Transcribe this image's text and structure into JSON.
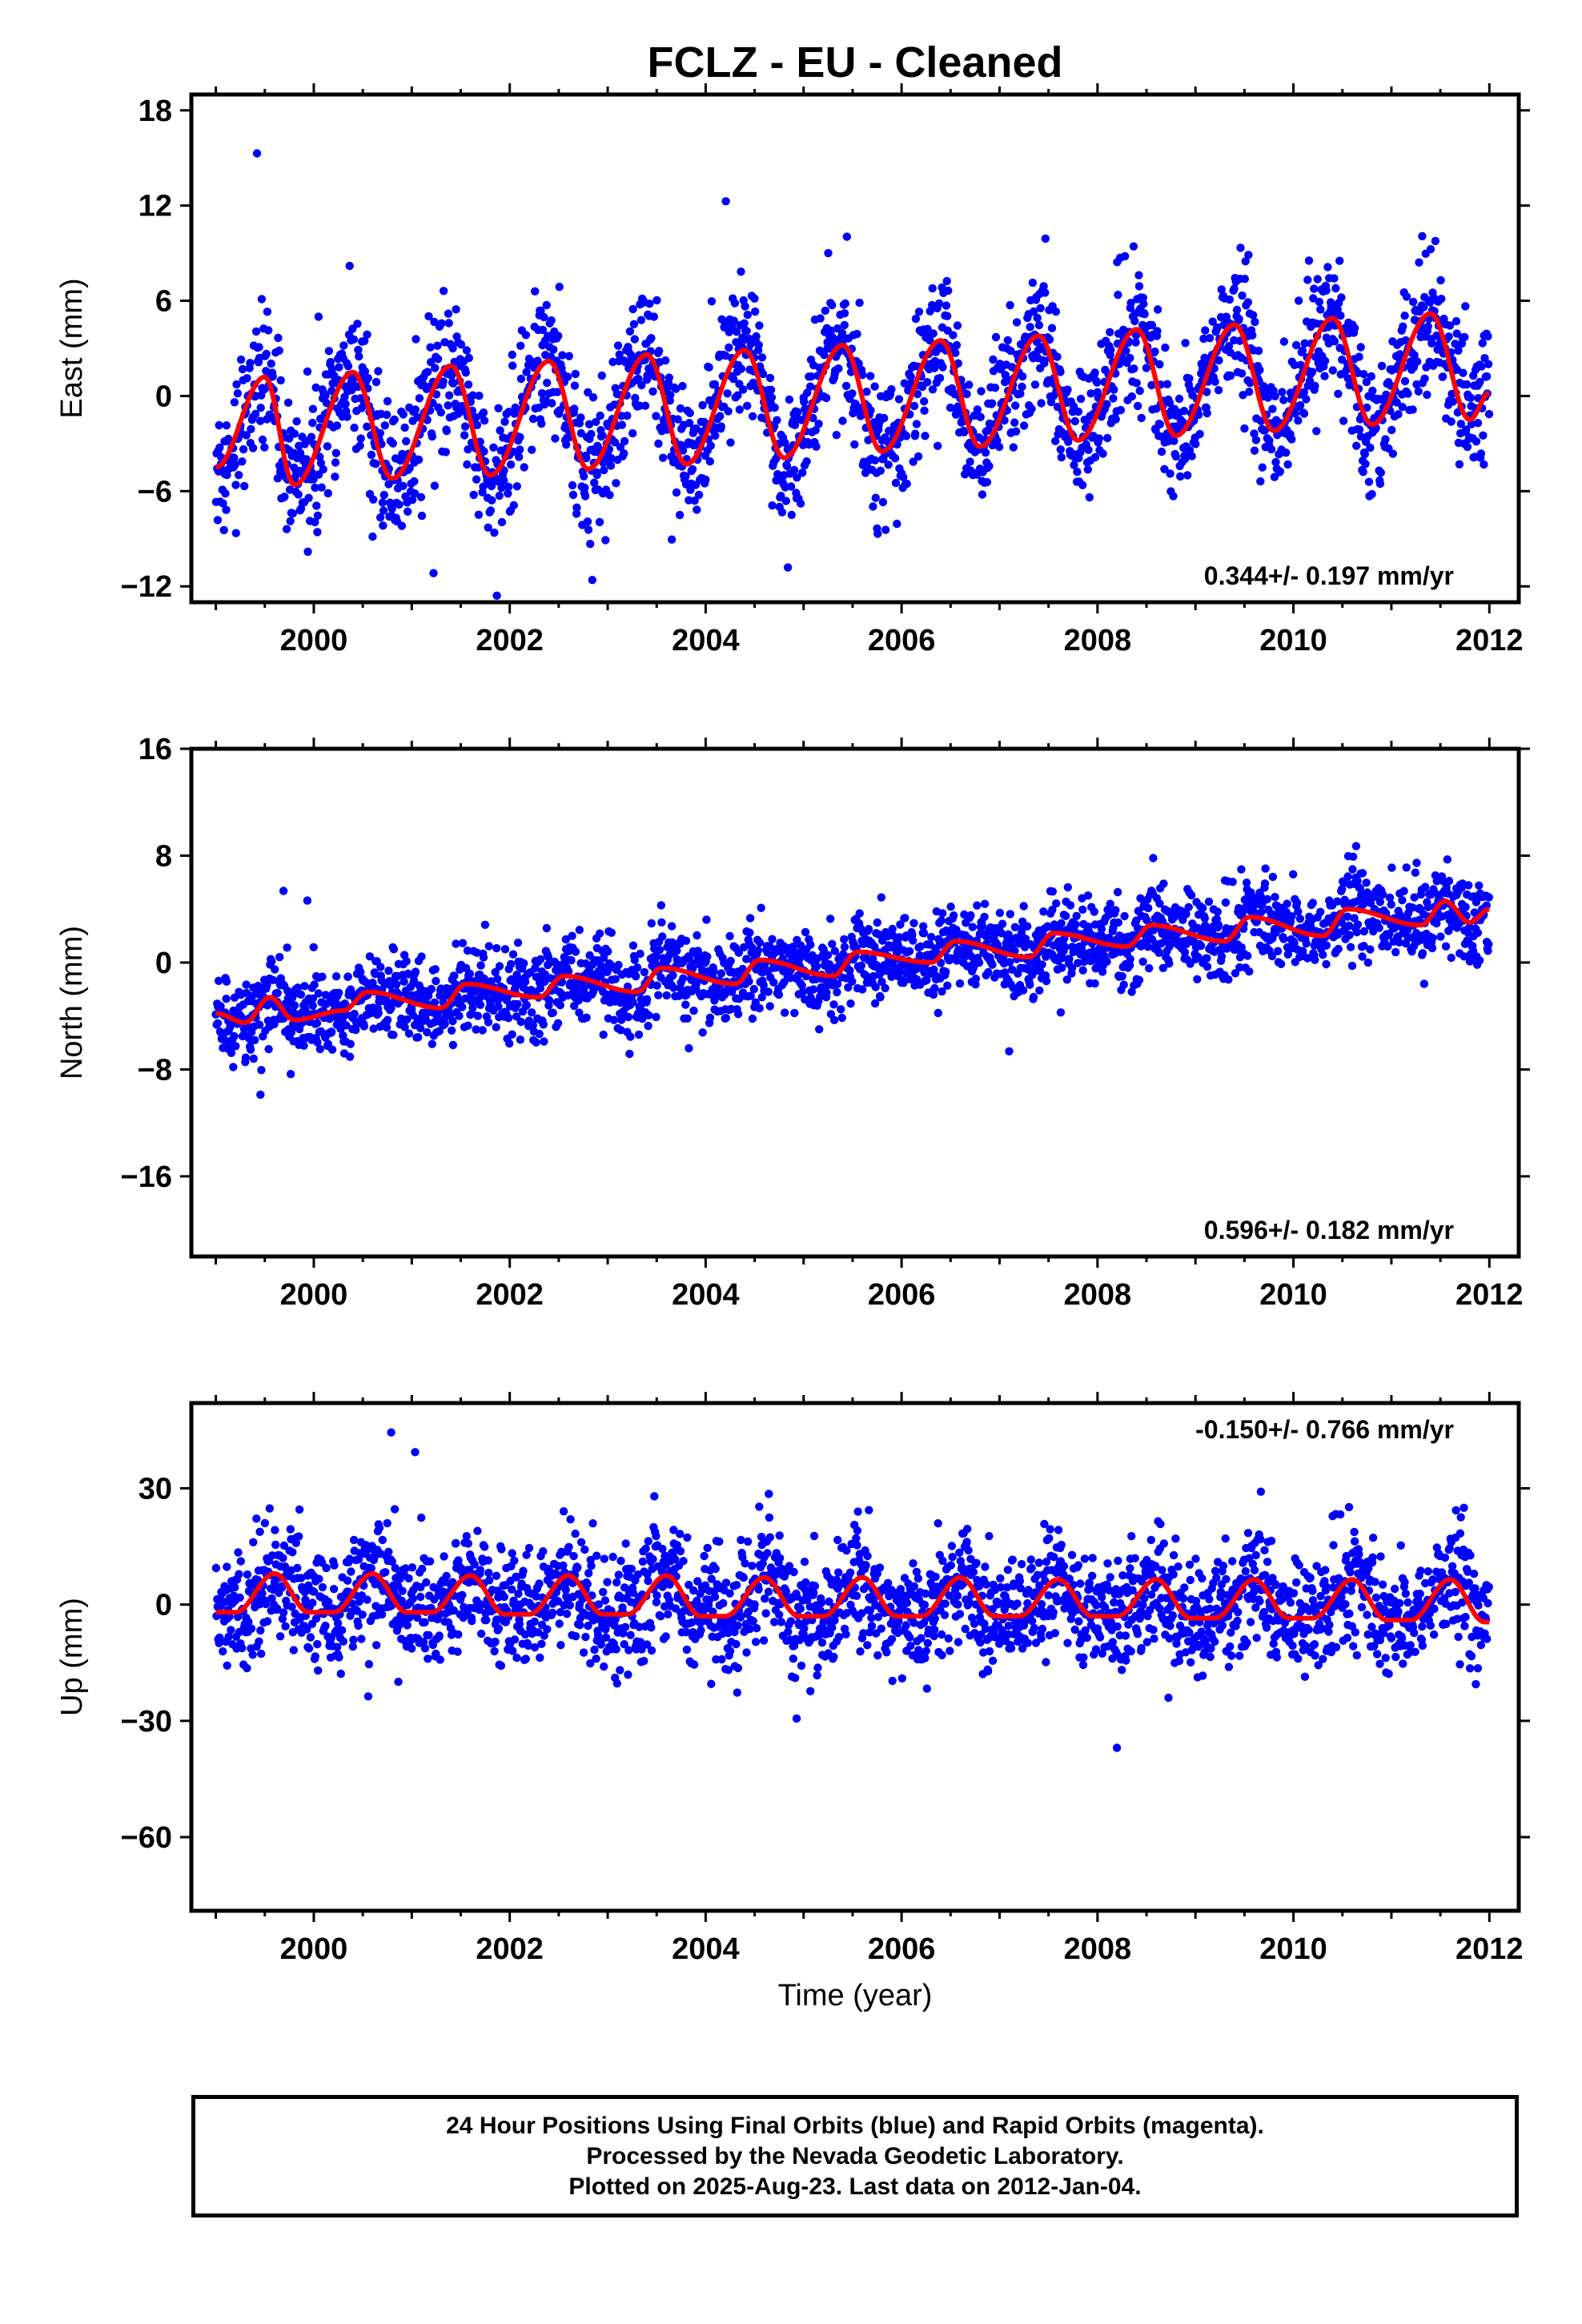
{
  "title": "FCLZ  - EU - Cleaned",
  "x_axis_label": "Time (year)",
  "colors": {
    "data_points": "#0000ff",
    "model_curve": "#ff0000",
    "frame": "#000000"
  },
  "footer": {
    "line1": "24 Hour Positions Using Final Orbits (blue) and Rapid Orbits (magenta).",
    "line2": "Processed by the Nevada Geodetic Laboratory.",
    "line3": "Plotted on 2025-Aug-23. Last data on 2012-Jan-04."
  },
  "chart_data": [
    {
      "type": "scatter",
      "component": "east",
      "ylabel": "East (mm)",
      "xlim": [
        1998.75,
        2012.3
      ],
      "ylim": [
        -13,
        19
      ],
      "xticks": [
        2000,
        2002,
        2004,
        2006,
        2008,
        2010,
        2012
      ],
      "yticks": [
        -12,
        -6,
        0,
        6,
        12,
        18
      ],
      "rate_annotation": "0.344+/- 0.197 mm/yr",
      "annotation_position": "bottom-right",
      "series": [
        {
          "kind": "daily-positions",
          "x_start": 1999.0,
          "x_end": 2012.0,
          "description_values": {
            "amplitude_mm": 4.2,
            "scatter_mm": 2.1
          }
        },
        {
          "kind": "model-fit",
          "x": [
            1999.0,
            1999.5,
            1999.8,
            2000.4,
            2000.8,
            2001.4,
            2001.8,
            2002.4,
            2002.8,
            2003.4,
            2003.8,
            2004.4,
            2004.8,
            2005.4,
            2005.8,
            2006.4,
            2006.8,
            2007.4,
            2007.8,
            2008.4,
            2008.8,
            2009.4,
            2009.8,
            2010.4,
            2010.8,
            2011.4,
            2011.8,
            2012.0
          ],
          "values": [
            -4.5,
            1.2,
            -5.6,
            1.5,
            -5.2,
            1.9,
            -5.0,
            2.2,
            -4.6,
            2.6,
            -4.3,
            2.9,
            -3.9,
            3.2,
            -3.5,
            3.5,
            -3.2,
            3.8,
            -2.8,
            4.2,
            -2.5,
            4.5,
            -2.2,
            4.9,
            -1.8,
            5.2,
            -1.5,
            0.2
          ]
        }
      ]
    },
    {
      "type": "scatter",
      "component": "north",
      "ylabel": "North (mm)",
      "xlim": [
        1998.75,
        2012.3
      ],
      "ylim": [
        -22,
        16
      ],
      "xticks": [
        2000,
        2002,
        2004,
        2006,
        2008,
        2010,
        2012
      ],
      "yticks": [
        -16,
        -8,
        0,
        8,
        16
      ],
      "rate_annotation": "0.596+/- 0.182 mm/yr",
      "annotation_position": "bottom-right",
      "series": [
        {
          "kind": "daily-positions",
          "x_start": 1999.0,
          "x_end": 2012.0,
          "description_values": {
            "trend_start_mm": -4.0,
            "trend_end_mm": 3.8,
            "scatter_mm": 1.6
          }
        },
        {
          "kind": "model-fit",
          "x": [
            1999.0,
            1999.3,
            1999.55,
            1999.8,
            2000.3,
            2000.55,
            2001.3,
            2001.55,
            2002.3,
            2002.55,
            2003.3,
            2003.55,
            2004.3,
            2004.55,
            2005.3,
            2005.55,
            2006.3,
            2006.55,
            2007.3,
            2007.55,
            2008.3,
            2008.55,
            2009.3,
            2009.55,
            2010.3,
            2010.55,
            2011.3,
            2011.55,
            2011.8,
            2012.0
          ],
          "values": [
            -3.8,
            -4.5,
            -2.6,
            -4.3,
            -3.6,
            -2.2,
            -3.4,
            -1.6,
            -2.6,
            -1.0,
            -2.2,
            -0.4,
            -1.6,
            0.2,
            -1.0,
            0.8,
            0.0,
            1.6,
            0.4,
            2.2,
            1.2,
            2.8,
            1.6,
            3.4,
            2.0,
            4.0,
            2.8,
            4.6,
            3.0,
            4.0
          ]
        }
      ]
    },
    {
      "type": "scatter",
      "component": "up",
      "ylabel": "Up (mm)",
      "xlim": [
        1998.75,
        2012.3
      ],
      "ylim": [
        -79,
        52
      ],
      "xticks": [
        2000,
        2002,
        2004,
        2006,
        2008,
        2010,
        2012
      ],
      "yticks": [
        -60,
        -30,
        0,
        30
      ],
      "rate_annotation": "-0.150+/- 0.766 mm/yr",
      "annotation_position": "top-right",
      "series": [
        {
          "kind": "daily-positions",
          "x_start": 1999.0,
          "x_end": 2012.0,
          "description_values": {
            "scatter_mm": 7.5
          }
        },
        {
          "kind": "model-fit",
          "x": [
            1999.0,
            1999.2,
            1999.6,
            1999.95,
            2000.2,
            2000.6,
            2000.95,
            2001.2,
            2001.6,
            2001.95,
            2002.2,
            2002.6,
            2002.95,
            2003.2,
            2003.6,
            2003.95,
            2004.2,
            2004.6,
            2004.95,
            2005.2,
            2005.6,
            2005.95,
            2006.2,
            2006.6,
            2006.95,
            2007.2,
            2007.6,
            2007.95,
            2008.2,
            2008.6,
            2008.95,
            2009.2,
            2009.6,
            2009.95,
            2010.2,
            2010.6,
            2010.95,
            2011.2,
            2011.6,
            2011.95,
            2012.0
          ],
          "values": [
            -2,
            -2,
            8,
            -2,
            -2,
            8,
            -2,
            -2,
            7.5,
            -2.5,
            -2.5,
            7.5,
            -2.5,
            -2.5,
            7.5,
            -3,
            -3,
            7,
            -3,
            -3,
            7,
            -3,
            -3,
            7,
            -3,
            -3,
            6.5,
            -3,
            -3,
            6.5,
            -3.5,
            -3.5,
            6.5,
            -3.5,
            -3.5,
            6.5,
            -4,
            -4,
            6.5,
            -4.5,
            -4.5
          ]
        }
      ]
    }
  ]
}
